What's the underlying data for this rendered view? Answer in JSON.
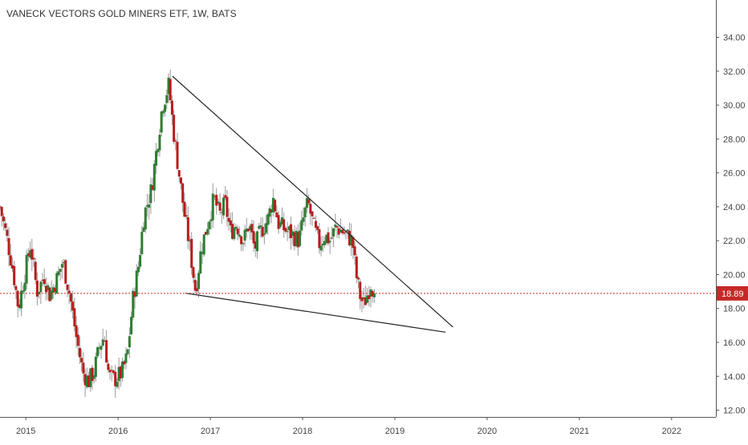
{
  "chart_data": {
    "type": "candlestick",
    "title": "VANECK VECTORS GOLD MINERS ETF, 1W, BATS",
    "x_tick_labels": [
      "2015",
      "2016",
      "2017",
      "2018",
      "2019",
      "2020",
      "2021",
      "2022"
    ],
    "y_tick_labels": [
      "12.00",
      "14.00",
      "16.00",
      "18.00",
      "20.00",
      "22.00",
      "24.00",
      "26.00",
      "28.00",
      "30.00",
      "32.00",
      "34.00"
    ],
    "xlim": [
      2014.72,
      2022.48
    ],
    "ylim": [
      11.6,
      36.2
    ],
    "last_price": 18.89,
    "last_price_label": "18.89",
    "colors": {
      "up": "#2e7d32",
      "down": "#b71c1c",
      "wick": "#9a9a9a",
      "axis_text": "#444444",
      "price_line": "#c62828",
      "trendline": "#222222"
    },
    "trendlines": [
      {
        "name": "upper-trendline",
        "from": [
          2016.59,
          31.7
        ],
        "to": [
          2019.63,
          16.9
        ]
      },
      {
        "name": "lower-trendline",
        "from": [
          2016.73,
          18.9
        ],
        "to": [
          2019.55,
          16.6
        ]
      }
    ],
    "anchors": [
      [
        2014.72,
        24.0
      ],
      [
        2014.8,
        22.0
      ],
      [
        2014.86,
        20.3
      ],
      [
        2014.92,
        18.0
      ],
      [
        2014.98,
        19.8
      ],
      [
        2015.05,
        21.8
      ],
      [
        2015.12,
        19.0
      ],
      [
        2015.2,
        19.9
      ],
      [
        2015.26,
        18.8
      ],
      [
        2015.34,
        19.8
      ],
      [
        2015.4,
        20.8
      ],
      [
        2015.48,
        18.7
      ],
      [
        2015.55,
        16.2
      ],
      [
        2015.62,
        14.2
      ],
      [
        2015.68,
        13.7
      ],
      [
        2015.74,
        14.3
      ],
      [
        2015.8,
        15.8
      ],
      [
        2015.85,
        16.4
      ],
      [
        2015.9,
        14.0
      ],
      [
        2015.96,
        13.8
      ],
      [
        2016.04,
        14.2
      ],
      [
        2016.1,
        15.2
      ],
      [
        2016.16,
        18.5
      ],
      [
        2016.22,
        20.5
      ],
      [
        2016.28,
        23.5
      ],
      [
        2016.36,
        25.0
      ],
      [
        2016.42,
        27.5
      ],
      [
        2016.48,
        30.0
      ],
      [
        2016.55,
        31.2
      ],
      [
        2016.6,
        28.5
      ],
      [
        2016.66,
        26.0
      ],
      [
        2016.72,
        23.5
      ],
      [
        2016.78,
        21.5
      ],
      [
        2016.84,
        19.0
      ],
      [
        2016.9,
        21.5
      ],
      [
        2016.96,
        22.8
      ],
      [
        2017.04,
        24.5
      ],
      [
        2017.1,
        23.5
      ],
      [
        2017.16,
        24.2
      ],
      [
        2017.22,
        22.5
      ],
      [
        2017.28,
        23.0
      ],
      [
        2017.36,
        22.0
      ],
      [
        2017.42,
        23.0
      ],
      [
        2017.48,
        21.5
      ],
      [
        2017.54,
        22.5
      ],
      [
        2017.62,
        23.2
      ],
      [
        2017.68,
        24.5
      ],
      [
        2017.74,
        23.0
      ],
      [
        2017.82,
        22.6
      ],
      [
        2017.88,
        22.4
      ],
      [
        2017.96,
        22.0
      ],
      [
        2018.02,
        23.6
      ],
      [
        2018.06,
        24.2
      ],
      [
        2018.12,
        22.8
      ],
      [
        2018.18,
        21.8
      ],
      [
        2018.24,
        22.3
      ],
      [
        2018.3,
        22.0
      ],
      [
        2018.36,
        22.8
      ],
      [
        2018.42,
        22.6
      ],
      [
        2018.48,
        22.3
      ],
      [
        2018.54,
        22.0
      ],
      [
        2018.58,
        20.0
      ],
      [
        2018.62,
        18.8
      ],
      [
        2018.66,
        18.2
      ],
      [
        2018.7,
        18.8
      ],
      [
        2018.74,
        19.5
      ],
      [
        2018.78,
        18.9
      ]
    ]
  }
}
